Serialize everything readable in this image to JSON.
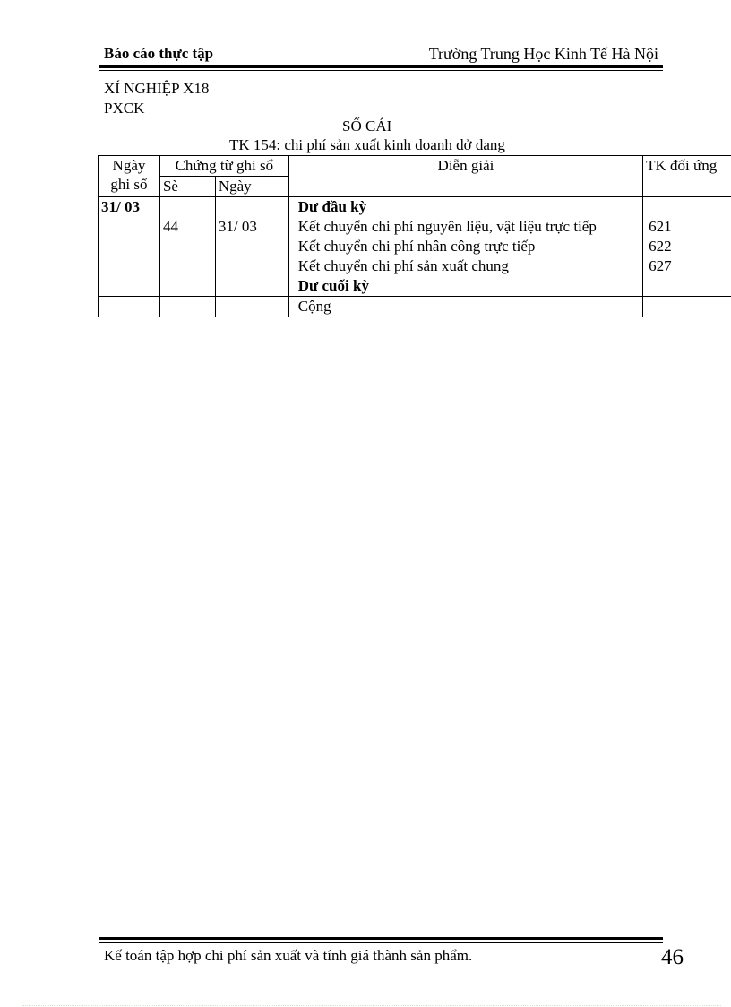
{
  "header": {
    "left": "Báo cáo thực tập",
    "right": "Trường Trung Học Kinh Tế Hà Nội"
  },
  "org": {
    "line1": "XÍ NGHIỆP X18",
    "line2": "PXCK"
  },
  "title": "SỔ CÁI",
  "subtitle": "TK 154: chi phí sản xuất kinh doanh dở dang",
  "table": {
    "headers": {
      "date": "Ngày ghi sổ",
      "voucher": "Chứng từ ghi sổ",
      "voucher_no": "Sè",
      "voucher_date": "Ngày",
      "description": "Diễn giải",
      "account": "TK đối ứng"
    },
    "body": {
      "date": "31/ 03",
      "voucher_no": "44",
      "voucher_date": "31/ 03",
      "lines": [
        {
          "text": "Dư đầu kỳ",
          "account": ""
        },
        {
          "text": "Kết chuyển chi phí nguyên liệu, vật liệu trực tiếp",
          "account": "621"
        },
        {
          "text": "Kết chuyển chi phí nhân công trực tiếp",
          "account": "622"
        },
        {
          "text": "Kết chuyển chi phí sản xuất chung",
          "account": "627"
        },
        {
          "text": "Dư cuối kỳ",
          "account": ""
        }
      ]
    },
    "total_label": "Cộng"
  },
  "footer": {
    "text": "Kế toán tập hợp chi phí sản xuất và tính giá thành sản phẩm.",
    "page_number": "46"
  }
}
